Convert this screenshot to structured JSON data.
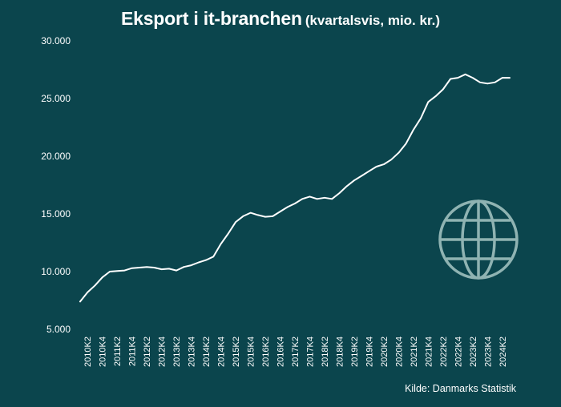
{
  "title": "Eksport i it-branchen",
  "subtitle": "(kvartalsvis, mio. kr.)",
  "source": "Kilde: Danmarks Statistik",
  "colors": {
    "background": "#0b454d",
    "line": "#ffffff",
    "icon": "#8fb3b2"
  },
  "icon": "globe-icon",
  "chart_data": {
    "type": "line",
    "title": "Eksport i it-branchen",
    "subtitle": "(kvartalsvis, mio. kr.)",
    "xlabel": "",
    "ylabel": "",
    "ylim": [
      5000,
      30000
    ],
    "y_ticks": [
      "5.000",
      "10.000",
      "15.000",
      "20.000",
      "25.000",
      "30.000"
    ],
    "y_tick_values": [
      5000,
      10000,
      15000,
      20000,
      25000,
      30000
    ],
    "grid": false,
    "legend": "none",
    "x_tick_labels": [
      "2010K2",
      "2010K4",
      "2011K2",
      "2011K4",
      "2012K2",
      "2012K4",
      "2013K2",
      "2013K4",
      "2014K2",
      "2014K4",
      "2015K2",
      "2015K4",
      "2016K2",
      "2016K4",
      "2017K2",
      "2017K4",
      "2018K2",
      "2018K4",
      "2019K2",
      "2019K4",
      "2020K2",
      "2020K4",
      "2021K2",
      "2021K4",
      "2022K2",
      "2022K4",
      "2023K2",
      "2023K4",
      "2024K2"
    ],
    "x": [
      "2010K1",
      "2010K2",
      "2010K3",
      "2010K4",
      "2011K1",
      "2011K2",
      "2011K3",
      "2011K4",
      "2012K1",
      "2012K2",
      "2012K3",
      "2012K4",
      "2013K1",
      "2013K2",
      "2013K3",
      "2013K4",
      "2014K1",
      "2014K2",
      "2014K3",
      "2014K4",
      "2015K1",
      "2015K2",
      "2015K3",
      "2015K4",
      "2016K1",
      "2016K2",
      "2016K3",
      "2016K4",
      "2017K1",
      "2017K2",
      "2017K3",
      "2017K4",
      "2018K1",
      "2018K2",
      "2018K3",
      "2018K4",
      "2019K1",
      "2019K2",
      "2019K3",
      "2019K4",
      "2020K1",
      "2020K2",
      "2020K3",
      "2020K4",
      "2021K1",
      "2021K2",
      "2021K3",
      "2021K4",
      "2022K1",
      "2022K2",
      "2022K3",
      "2022K4",
      "2023K1",
      "2023K2",
      "2023K3",
      "2023K4",
      "2024K1",
      "2024K2",
      "2024K3"
    ],
    "series": [
      {
        "values": [
          7400,
          8200,
          8800,
          9500,
          10000,
          10050,
          10100,
          10300,
          10350,
          10400,
          10350,
          10200,
          10250,
          10100,
          10400,
          10550,
          10800,
          11000,
          11300,
          12400,
          13300,
          14300,
          14800,
          15100,
          14900,
          14750,
          14800,
          15200,
          15600,
          15900,
          16300,
          16500,
          16300,
          16400,
          16300,
          16800,
          17400,
          17900,
          18300,
          18700,
          19100,
          19300,
          19700,
          20300,
          21100,
          22300,
          23300,
          24700,
          25200,
          25800,
          26700,
          26800,
          27100,
          26800,
          26400,
          26300,
          26400,
          26800,
          26800
        ]
      }
    ]
  }
}
